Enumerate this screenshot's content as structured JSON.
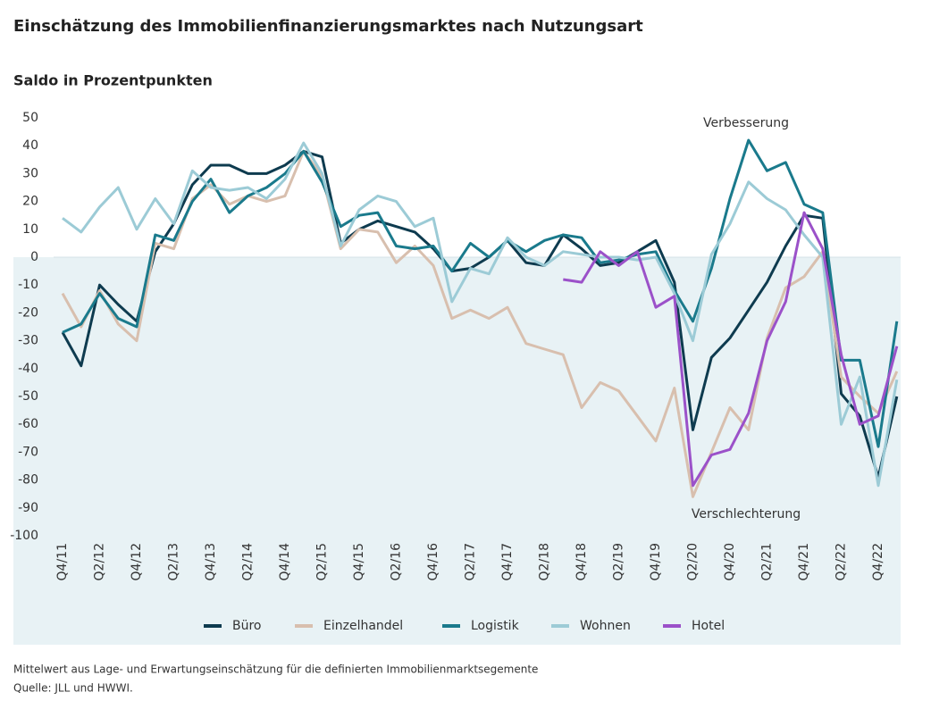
{
  "chart_data": {
    "type": "line",
    "title": "Einschätzung des Immobilienfinanzierungsmarktes nach Nutzungsart",
    "subtitle": "Saldo in Prozentpunkten",
    "annotations": [
      "Verbesserung",
      "Verschlechterung"
    ],
    "footnotes": [
      "Mittelwert aus Lage- und Erwartungseinschätzung für die definierten Immobilienmarktsegemente",
      "Quelle: JLL und HWWI."
    ],
    "categories": [
      "Q4/11",
      null,
      "Q2/12",
      null,
      "Q4/12",
      null,
      "Q2/13",
      null,
      "Q4/13",
      null,
      "Q2/14",
      null,
      "Q4/14",
      null,
      "Q2/15",
      null,
      "Q4/15",
      null,
      "Q2/16",
      null,
      "Q4/16",
      null,
      "Q2/17",
      null,
      "Q4/17",
      null,
      "Q2/18",
      null,
      "Q4/18",
      null,
      "Q2/19",
      null,
      "Q4/19",
      null,
      "Q2/20",
      null,
      "Q4/20",
      null,
      "Q2/21",
      null,
      "Q4/21",
      null,
      "Q2/22",
      null,
      "Q4/22",
      null
    ],
    "ylim": [
      -100,
      50
    ],
    "yticks": [
      50,
      40,
      30,
      20,
      10,
      0,
      -10,
      -20,
      -30,
      -40,
      -50,
      -60,
      -70,
      -80,
      -90,
      -100
    ],
    "grid": false,
    "legend": "bottom",
    "series": [
      {
        "name": "Büro",
        "color": "#0e3b4f",
        "values": [
          -27,
          -39,
          -10,
          -17,
          -23,
          2,
          12,
          26,
          33,
          33,
          30,
          30,
          33,
          38,
          36,
          5,
          10,
          13,
          11,
          9,
          3,
          -5,
          -4,
          0,
          6,
          -2,
          -3,
          8,
          3,
          -3,
          -2,
          2,
          6,
          -9,
          -62,
          -36,
          -29,
          -19,
          -9,
          4,
          15,
          14,
          -49,
          -57,
          -79,
          -50
        ]
      },
      {
        "name": "Einzelhandel",
        "color": "#d8bfae",
        "values": [
          -13,
          -25,
          -12,
          -24,
          -30,
          5,
          3,
          21,
          26,
          19,
          22,
          20,
          22,
          38,
          29,
          3,
          10,
          9,
          -2,
          4,
          -3,
          -22,
          -19,
          -22,
          -18,
          -31,
          -33,
          -35,
          -54,
          -45,
          -48,
          -57,
          -66,
          -47,
          -86,
          -70,
          -54,
          -62,
          -29,
          -11,
          -7,
          2,
          -43,
          -50,
          -56,
          -41
        ]
      },
      {
        "name": "Logistik",
        "color": "#1a7a8c",
        "values": [
          -27,
          -24,
          -13,
          -22,
          -25,
          8,
          6,
          20,
          28,
          16,
          22,
          25,
          30,
          38,
          27,
          11,
          15,
          16,
          4,
          3,
          4,
          -5,
          5,
          0,
          6,
          2,
          6,
          8,
          7,
          -2,
          -1,
          1,
          2,
          -12,
          -23,
          -4,
          21,
          42,
          31,
          34,
          19,
          16,
          -37,
          -37,
          -68,
          -23
        ]
      },
      {
        "name": "Wohnen",
        "color": "#9ccbd6",
        "values": [
          14,
          9,
          18,
          25,
          10,
          21,
          12,
          31,
          25,
          24,
          25,
          21,
          28,
          41,
          30,
          4,
          17,
          22,
          20,
          11,
          14,
          -16,
          -4,
          -6,
          7,
          0,
          -3,
          2,
          1,
          0,
          0,
          -1,
          0,
          -13,
          -30,
          1,
          12,
          27,
          21,
          17,
          8,
          0,
          -60,
          -43,
          -82,
          -44
        ]
      },
      {
        "name": "Hotel",
        "color": "#9b51c9",
        "values": [
          null,
          null,
          null,
          null,
          null,
          null,
          null,
          null,
          null,
          null,
          null,
          null,
          null,
          null,
          null,
          null,
          null,
          null,
          null,
          null,
          null,
          null,
          null,
          null,
          null,
          null,
          null,
          -8,
          -9,
          2,
          -3,
          2,
          -18,
          -14,
          -82,
          -71,
          -69,
          -56,
          -30,
          -16,
          16,
          3,
          -35,
          -60,
          -57,
          -32
        ]
      }
    ]
  }
}
